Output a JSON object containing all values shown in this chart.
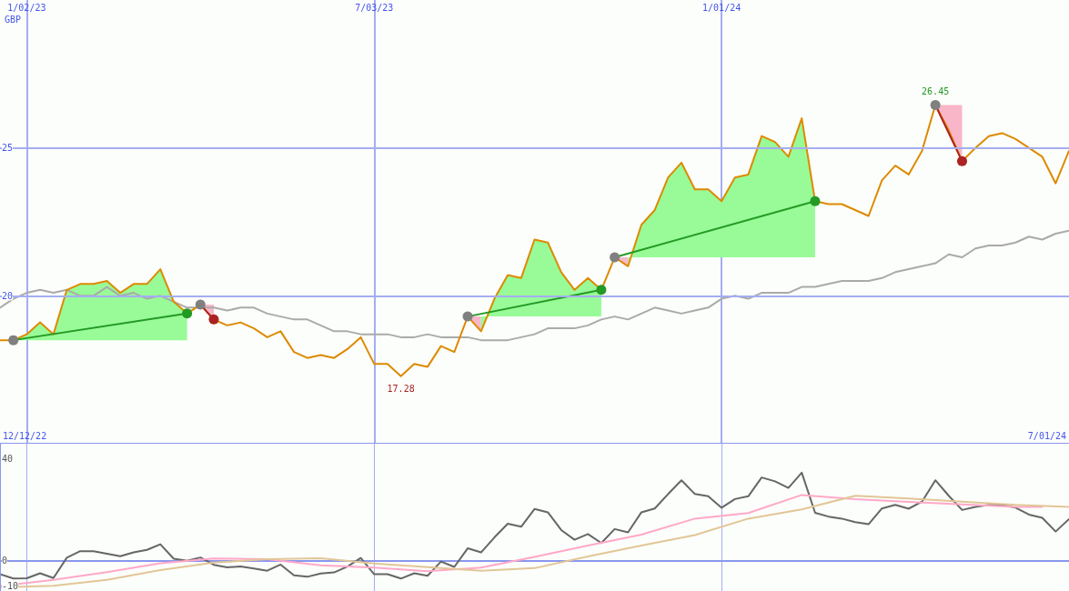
{
  "chart_data": [
    {
      "type": "line",
      "ylabel": "GBP",
      "x": [
        "2022-12-19",
        "2022-12-26",
        "2023-01-02",
        "2023-01-09",
        "2023-01-16",
        "2023-01-23",
        "2023-01-30",
        "2023-02-06",
        "2023-02-13",
        "2023-02-20",
        "2023-02-27",
        "2023-03-06",
        "2023-03-13",
        "2023-03-20",
        "2023-03-27",
        "2023-04-03",
        "2023-04-10",
        "2023-04-17",
        "2023-04-24",
        "2023-05-01",
        "2023-05-08",
        "2023-05-15",
        "2023-05-22",
        "2023-05-29",
        "2023-06-05",
        "2023-06-12",
        "2023-06-19",
        "2023-06-26",
        "2023-07-03",
        "2023-07-10",
        "2023-07-17",
        "2023-07-24",
        "2023-07-31",
        "2023-08-07",
        "2023-08-14",
        "2023-08-21",
        "2023-08-28",
        "2023-09-04",
        "2023-09-11",
        "2023-09-18",
        "2023-09-25",
        "2023-10-02",
        "2023-10-09",
        "2023-10-16",
        "2023-10-23",
        "2023-10-30",
        "2023-11-06",
        "2023-11-13",
        "2023-11-20",
        "2023-11-27",
        "2023-12-04",
        "2023-12-11",
        "2023-12-18",
        "2023-12-25",
        "2024-01-01",
        "2024-01-08",
        "2024-01-15",
        "2024-01-22",
        "2024-01-29",
        "2024-02-05",
        "2024-02-12",
        "2024-02-19",
        "2024-02-26",
        "2024-03-04",
        "2024-03-11",
        "2024-03-18",
        "2024-03-25",
        "2024-04-01",
        "2024-04-08",
        "2024-04-15",
        "2024-04-22",
        "2024-04-29",
        "2024-05-06",
        "2024-05-13",
        "2024-05-20",
        "2024-05-27",
        "2024-06-03",
        "2024-06-10",
        "2024-06-17",
        "2024-06-24",
        "2024-07-01"
      ],
      "xlim": [
        "2022-12-19",
        "2024-07-01"
      ],
      "xticks": [
        {
          "value": "2023-01-02",
          "label": "1/02/23"
        },
        {
          "value": "2023-07-03",
          "label": "7/03/23"
        },
        {
          "value": "2024-01-01",
          "label": "1/01/24"
        }
      ],
      "ylim": [
        15,
        30
      ],
      "yticks": [
        20,
        25
      ],
      "grid": true,
      "annotations": [
        "12/12/22",
        "7/01/24",
        {
          "text": "26.45",
          "x": "2024-04-22",
          "y": 26.45
        },
        {
          "text": "17.28",
          "x": "2023-07-17",
          "y": 17.28
        }
      ],
      "series": [
        {
          "color": "#aaaaaa",
          "values": [
            19.6,
            19.9,
            20.1,
            20.2,
            20.1,
            20.2,
            20.0,
            20.0,
            20.3,
            20.0,
            20.1,
            19.9,
            20.0,
            19.8,
            19.6,
            19.6,
            19.6,
            19.5,
            19.6,
            19.6,
            19.4,
            19.3,
            19.2,
            19.2,
            19.0,
            18.8,
            18.8,
            18.7,
            18.7,
            18.7,
            18.6,
            18.6,
            18.7,
            18.6,
            18.6,
            18.6,
            18.5,
            18.5,
            18.5,
            18.6,
            18.7,
            18.9,
            18.9,
            18.9,
            19.0,
            19.2,
            19.3,
            19.2,
            19.4,
            19.6,
            19.5,
            19.4,
            19.5,
            19.6,
            19.9,
            20.0,
            19.9,
            20.1,
            20.1,
            20.1,
            20.3,
            20.3,
            20.4,
            20.5,
            20.5,
            20.5,
            20.6,
            20.8,
            20.9,
            21.0,
            21.1,
            21.4,
            21.3,
            21.6,
            21.7,
            21.7,
            21.8,
            22.0,
            21.9,
            22.1,
            22.2
          ]
        },
        {
          "color": "#dd8a00",
          "values": [
            18.5,
            18.5,
            18.7,
            19.1,
            18.7,
            20.2,
            20.4,
            20.4,
            20.5,
            20.1,
            20.4,
            20.4,
            20.9,
            19.8,
            19.4,
            19.7,
            19.2,
            19.0,
            19.1,
            18.9,
            18.6,
            18.8,
            18.1,
            17.9,
            18.0,
            17.9,
            18.2,
            18.6,
            17.7,
            17.7,
            17.28,
            17.7,
            17.6,
            18.3,
            18.1,
            19.3,
            18.8,
            19.9,
            20.7,
            20.6,
            21.9,
            21.8,
            20.8,
            20.2,
            20.6,
            20.2,
            21.3,
            21.0,
            22.4,
            22.9,
            24.0,
            24.5,
            23.6,
            23.6,
            23.2,
            24.0,
            24.1,
            25.4,
            25.2,
            24.7,
            26.0,
            23.2,
            23.1,
            23.1,
            22.9,
            22.7,
            23.9,
            24.4,
            24.1,
            24.9,
            26.45,
            25.6,
            24.55,
            25.0,
            25.4,
            25.5,
            25.3,
            25.0,
            24.7,
            23.8,
            24.9
          ]
        },
        {
          "type": "area",
          "color": "#98fb98",
          "x": [
            "2022-12-26",
            "2023-01-02",
            "2023-01-09",
            "2023-01-16",
            "2023-01-23",
            "2023-01-30",
            "2023-02-06",
            "2023-02-13",
            "2023-02-20",
            "2023-02-27",
            "2023-03-06",
            "2023-03-13",
            "2023-03-20",
            "2023-03-27"
          ],
          "values": [
            null,
            null,
            null,
            null,
            null,
            null,
            null,
            null,
            null,
            null,
            null,
            null,
            null,
            null
          ],
          "upper": [
            18.5,
            18.7,
            19.1,
            18.7,
            20.2,
            20.4,
            20.4,
            20.5,
            20.1,
            20.4,
            20.4,
            20.9,
            19.8,
            19.4
          ],
          "lower": [
            18.5,
            18.5,
            18.5,
            18.5,
            18.5,
            18.5,
            18.5,
            18.5,
            18.5,
            18.5,
            18.5,
            18.5,
            18.5,
            18.5
          ]
        },
        {
          "type": "area",
          "color": "#f9b6c9",
          "x": [
            "2023-04-03",
            "2023-04-10"
          ],
          "values": [
            null,
            null
          ],
          "upper": [
            19.7,
            19.7
          ],
          "lower": [
            19.7,
            19.2
          ]
        },
        {
          "type": "area",
          "color": "#f9b6c9",
          "x": [
            "2023-08-21",
            "2023-08-28"
          ],
          "values": [
            null,
            null
          ],
          "upper": [
            19.3,
            19.3
          ],
          "lower": [
            19.3,
            18.8
          ]
        },
        {
          "type": "area",
          "color": "#98fb98",
          "x": [
            "2023-08-28",
            "2023-09-04",
            "2023-09-11",
            "2023-09-18",
            "2023-09-25",
            "2023-10-02",
            "2023-10-09",
            "2023-10-16",
            "2023-10-23",
            "2023-10-30"
          ],
          "values": [
            null,
            null,
            null,
            null,
            null,
            null,
            null,
            null,
            null,
            null
          ],
          "upper": [
            18.8,
            19.9,
            20.7,
            20.6,
            21.9,
            21.8,
            20.8,
            20.2,
            20.6,
            20.2
          ],
          "lower": [
            19.3,
            19.3,
            19.3,
            19.3,
            19.3,
            19.3,
            19.3,
            19.3,
            19.3,
            19.3
          ]
        },
        {
          "type": "area",
          "color": "#f9b6c9",
          "x": [
            "2023-11-06",
            "2023-11-13"
          ],
          "values": [
            null,
            null
          ],
          "upper": [
            21.3,
            21.3
          ],
          "lower": [
            21.3,
            21.0
          ]
        },
        {
          "type": "area",
          "color": "#98fb98",
          "x": [
            "2023-11-13",
            "2023-11-20",
            "2023-11-27",
            "2023-12-04",
            "2023-12-11",
            "2023-12-18",
            "2023-12-25",
            "2024-01-01",
            "2024-01-08",
            "2024-01-15",
            "2024-01-22",
            "2024-01-29",
            "2024-02-05",
            "2024-02-12",
            "2024-02-19"
          ],
          "values": [
            null,
            null,
            null,
            null,
            null,
            null,
            null,
            null,
            null,
            null,
            null,
            null,
            null,
            null,
            null
          ],
          "upper": [
            21.0,
            22.4,
            22.9,
            24.0,
            24.5,
            23.6,
            23.6,
            23.2,
            24.0,
            24.1,
            25.4,
            25.2,
            24.7,
            26.0,
            23.2
          ],
          "lower": [
            21.3,
            21.3,
            21.3,
            21.3,
            21.3,
            21.3,
            21.3,
            21.3,
            21.3,
            21.3,
            21.3,
            21.3,
            21.3,
            21.3,
            21.3
          ]
        },
        {
          "type": "area",
          "color": "#f9b6c9",
          "x": [
            "2024-04-22",
            "2024-04-29",
            "2024-05-06"
          ],
          "values": [
            null,
            null,
            null
          ],
          "upper": [
            26.45,
            26.45,
            26.45
          ],
          "lower": [
            26.45,
            25.6,
            24.55
          ]
        },
        {
          "color": "#229922",
          "marker": "circle",
          "colors": [
            "#808080",
            "#229922"
          ],
          "x": [
            "2022-12-26",
            "2023-03-27"
          ],
          "values": [
            18.5,
            19.4
          ]
        },
        {
          "color": "#aa2222",
          "marker": "circle",
          "colors": [
            "#808080",
            "#aa2222"
          ],
          "x": [
            "2023-04-03",
            "2023-04-10"
          ],
          "values": [
            19.7,
            19.2
          ]
        },
        {
          "color": "#239a23",
          "marker": "circle",
          "colors": [
            "#808080",
            "#239a23"
          ],
          "x": [
            "2023-08-21",
            "2023-10-30"
          ],
          "values": [
            19.3,
            20.2
          ]
        },
        {
          "color": "#249b24",
          "marker": "circle",
          "colors": [
            "#808080",
            "#249b24"
          ],
          "x": [
            "2023-11-06",
            "2024-02-19"
          ],
          "values": [
            21.3,
            23.2
          ]
        },
        {
          "color": "#ab2323",
          "marker": "circle",
          "colors": [
            "#808080",
            "#ab2323"
          ],
          "x": [
            "2024-04-22",
            "2024-05-06"
          ],
          "values": [
            26.45,
            24.55
          ]
        }
      ]
    },
    {
      "type": "line",
      "x": [
        "2022-12-19",
        "2022-12-26",
        "2023-01-02",
        "2023-01-09",
        "2023-01-16",
        "2023-01-23",
        "2023-01-30",
        "2023-02-06",
        "2023-02-13",
        "2023-02-20",
        "2023-02-27",
        "2023-03-06",
        "2023-03-13",
        "2023-03-20",
        "2023-03-27",
        "2023-04-03",
        "2023-04-10",
        "2023-04-17",
        "2023-04-24",
        "2023-05-01",
        "2023-05-08",
        "2023-05-15",
        "2023-05-22",
        "2023-05-29",
        "2023-06-05",
        "2023-06-12",
        "2023-06-19",
        "2023-06-26",
        "2023-07-03",
        "2023-07-10",
        "2023-07-17",
        "2023-07-24",
        "2023-07-31",
        "2023-08-07",
        "2023-08-14",
        "2023-08-21",
        "2023-08-28",
        "2023-09-04",
        "2023-09-11",
        "2023-09-18",
        "2023-09-25",
        "2023-10-02",
        "2023-10-09",
        "2023-10-16",
        "2023-10-23",
        "2023-10-30",
        "2023-11-06",
        "2023-11-13",
        "2023-11-20",
        "2023-11-27",
        "2023-12-04",
        "2023-12-11",
        "2023-12-18",
        "2023-12-25",
        "2024-01-01",
        "2024-01-08",
        "2024-01-15",
        "2024-01-22",
        "2024-01-29",
        "2024-02-05",
        "2024-02-12",
        "2024-02-19",
        "2024-02-26",
        "2024-03-04",
        "2024-03-11",
        "2024-03-18",
        "2024-03-25",
        "2024-04-01",
        "2024-04-08",
        "2024-04-15",
        "2024-04-22",
        "2024-04-29",
        "2024-05-06",
        "2024-05-13",
        "2024-05-20",
        "2024-05-27",
        "2024-06-03",
        "2024-06-10",
        "2024-06-17",
        "2024-06-24",
        "2024-07-01"
      ],
      "xlim": [
        "2022-12-19",
        "2024-07-01"
      ],
      "xticks": [
        {
          "value": "2023-01-02",
          "label": null
        },
        {
          "value": "2023-07-03",
          "label": null
        },
        {
          "value": "2024-01-01",
          "label": null
        }
      ],
      "ylim": [
        -12,
        46
      ],
      "yticks": [
        -10,
        0,
        40
      ],
      "grid": "x",
      "tick_labels": "y",
      "ref_lines": [
        {
          "axis": "y",
          "value": 0
        }
      ],
      "series": [
        {
          "color": "#666666",
          "values": [
            -5.4,
            -7.1,
            -7.0,
            -5.0,
            -6.9,
            1.1,
            3.7,
            3.7,
            2.7,
            1.7,
            3.2,
            4.2,
            6.4,
            0.7,
            -0.1,
            1.2,
            -1.7,
            -2.7,
            -2.3,
            -3.1,
            -4.0,
            -1.6,
            -5.8,
            -6.4,
            -5.1,
            -4.7,
            -2.4,
            1.0,
            -5.4,
            -5.4,
            -7.1,
            -5.0,
            -6.0,
            -0.4,
            -2.5,
            4.8,
            3.2,
            9.1,
            14.5,
            13.3,
            20.3,
            19.0,
            12.0,
            8.2,
            10.4,
            6.9,
            12.4,
            11.1,
            19.0,
            20.5,
            26.2,
            31.6,
            26.2,
            25.3,
            20.8,
            24.2,
            25.3,
            32.7,
            31.2,
            28.6,
            34.6,
            18.8,
            17.3,
            16.5,
            15.1,
            14.3,
            20.5,
            21.9,
            20.4,
            23.2,
            31.6,
            25.5,
            19.9,
            21.1,
            21.9,
            21.9,
            20.8,
            18.1,
            16.8,
            11.4,
            16.3
          ]
        },
        {
          "color": "#ffa8c8",
          "x": [
            "2022-12-19",
            "2023-01-16",
            "2023-02-13",
            "2023-03-13",
            "2023-04-10",
            "2023-05-08",
            "2023-06-05",
            "2023-07-03",
            "2023-07-31",
            "2023-08-28",
            "2023-09-25",
            "2023-10-23",
            "2023-11-20",
            "2023-12-18",
            "2024-01-15",
            "2024-02-12",
            "2024-03-11",
            "2024-04-08",
            "2024-05-06",
            "2024-06-03",
            "2024-06-17"
          ],
          "values": [
            -10.0,
            -7.6,
            -4.6,
            -1.1,
            0.8,
            0.5,
            -1.9,
            -2.8,
            -4.2,
            -2.8,
            1.4,
            5.9,
            10.2,
            16.5,
            18.7,
            25.8,
            24.2,
            23.1,
            22.1,
            21.1,
            21.1
          ]
        },
        {
          "color": "#e2c697",
          "x": [
            "2022-12-19",
            "2023-01-16",
            "2023-02-13",
            "2023-03-13",
            "2023-04-10",
            "2023-05-08",
            "2023-06-05",
            "2023-07-03",
            "2023-07-31",
            "2023-08-28",
            "2023-09-25",
            "2023-10-23",
            "2023-11-20",
            "2023-12-18",
            "2024-01-15",
            "2024-02-12",
            "2024-03-11",
            "2024-04-08",
            "2024-05-06",
            "2024-06-03",
            "2024-07-01"
          ],
          "values": [
            -10.6,
            -9.9,
            -7.6,
            -3.8,
            -0.8,
            0.5,
            0.9,
            -1.2,
            -2.6,
            -4.0,
            -3.0,
            1.6,
            5.9,
            10.0,
            16.5,
            20.1,
            25.5,
            24.4,
            23.2,
            21.9,
            21.1
          ]
        }
      ]
    }
  ]
}
